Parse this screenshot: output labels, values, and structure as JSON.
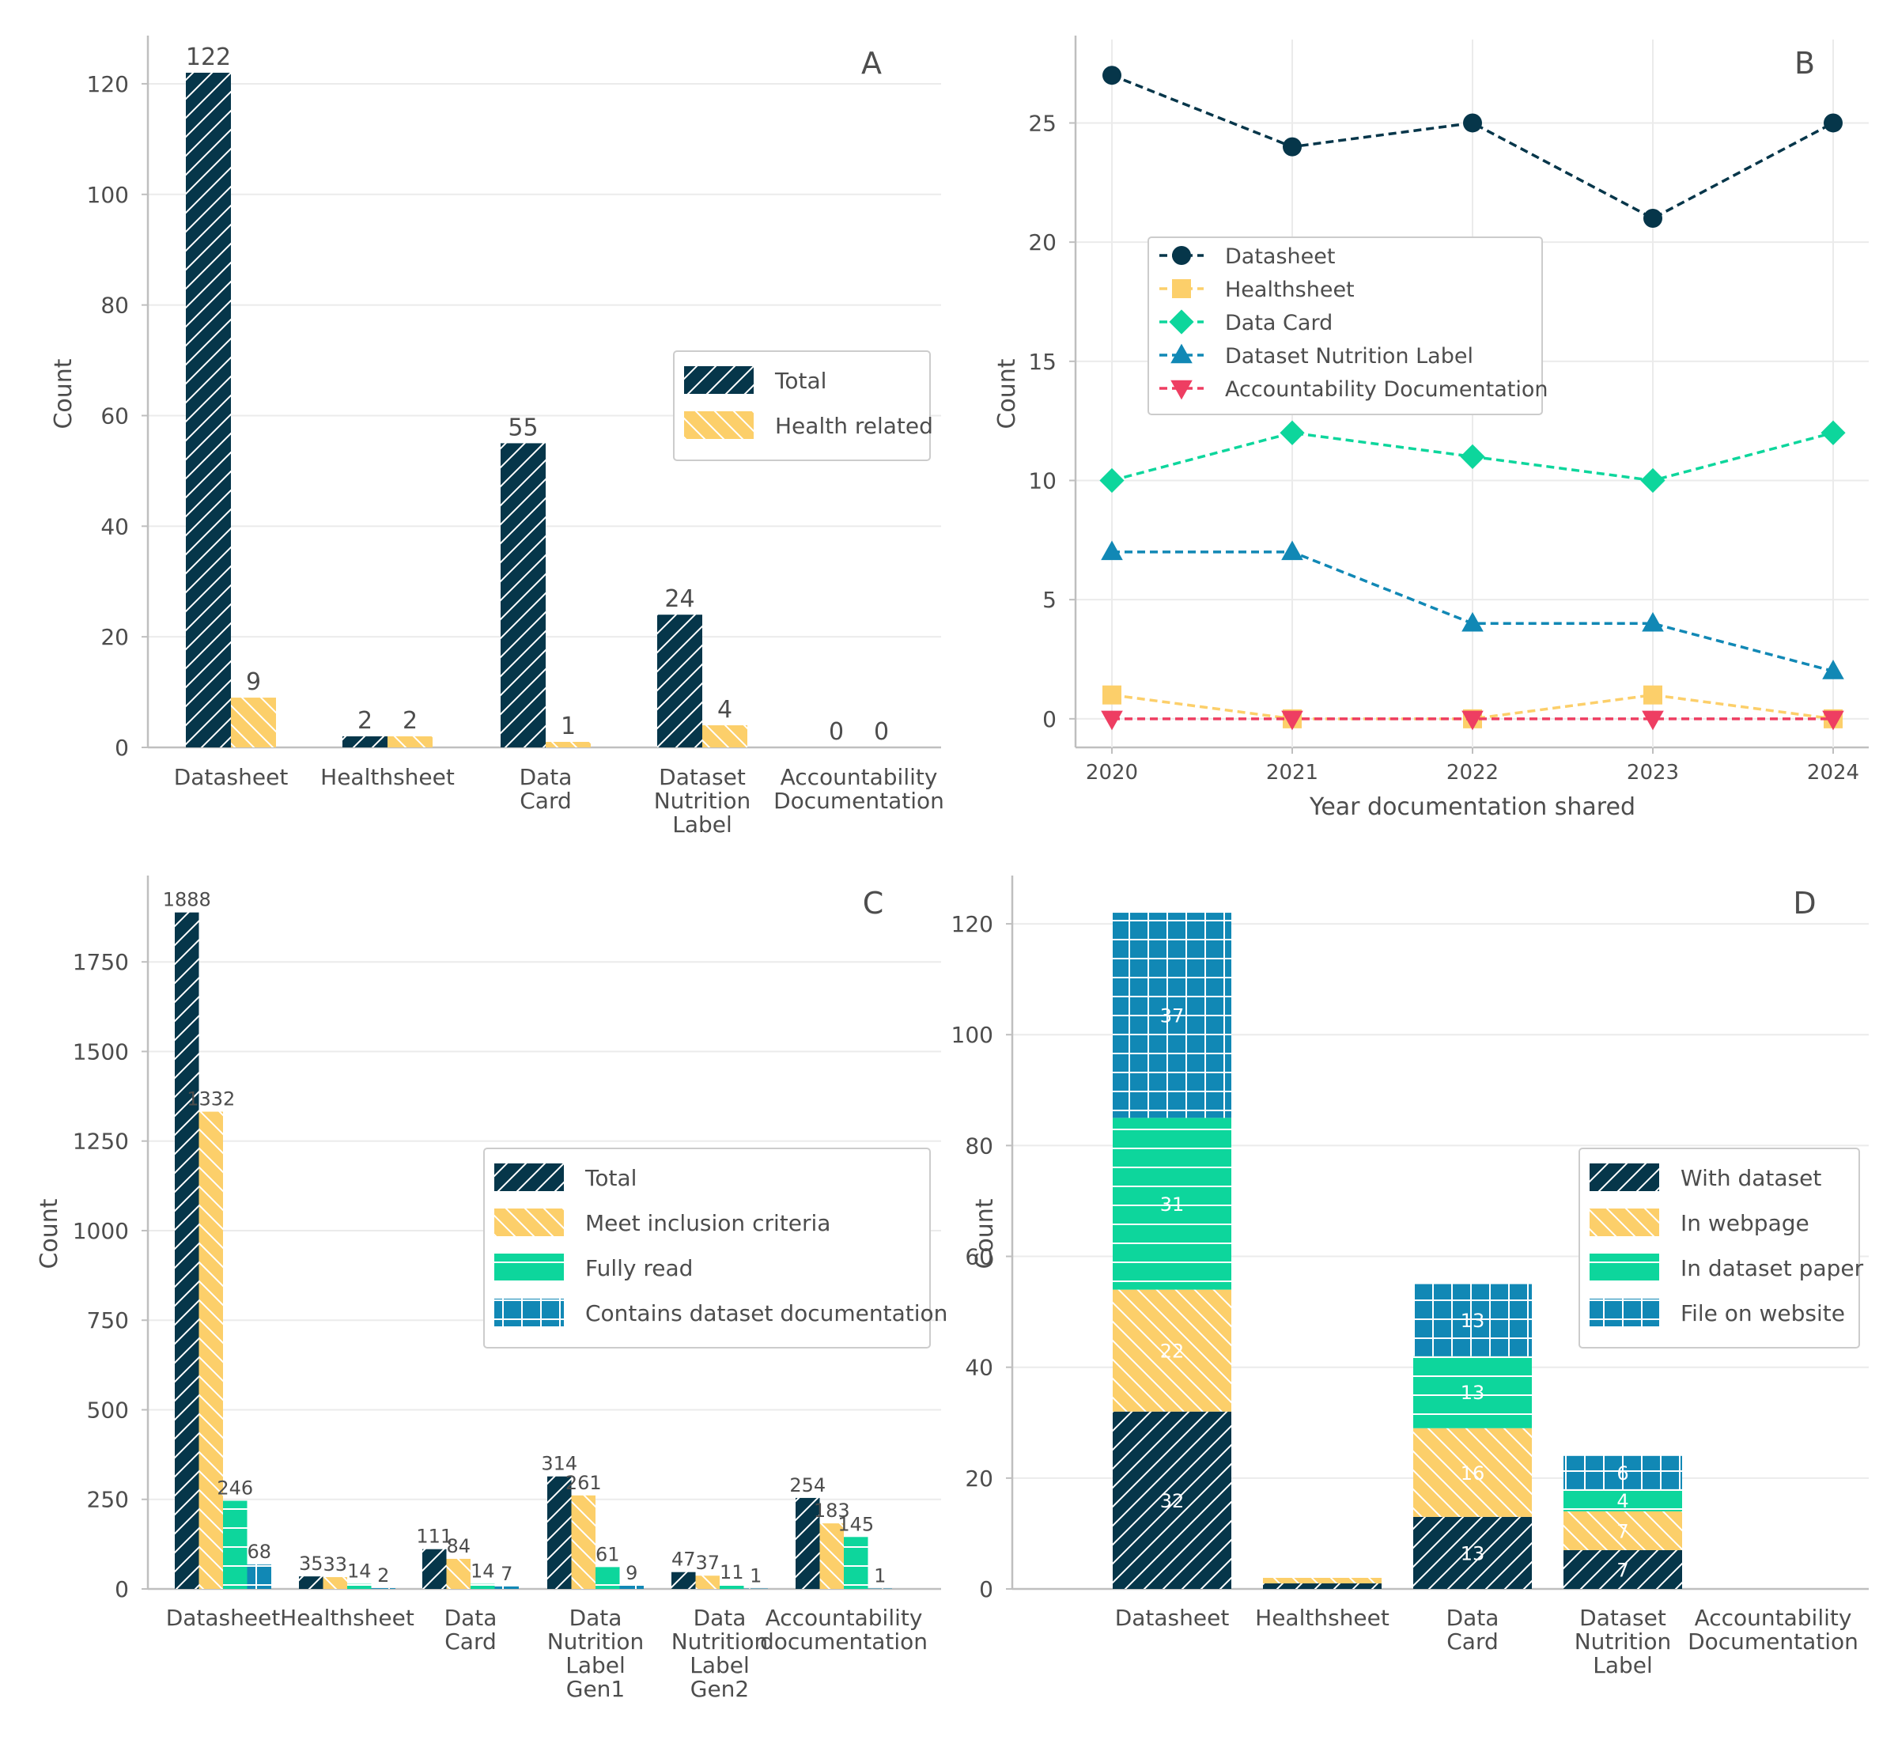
{
  "colors": {
    "dark": "#06364a",
    "yellow": "#fccf6a",
    "green": "#0dd69c",
    "blue": "#1188b5",
    "red": "#ee3e62",
    "axis": "#bfbfbf",
    "grid": "#ebebeb",
    "text": "#4d4d4d"
  },
  "chart_data": [
    {
      "panel": "A",
      "type": "bar",
      "panel_label": "A",
      "ylabel": "Count",
      "xlabel": "",
      "ylim": [
        0,
        128
      ],
      "yticks": [
        0,
        20,
        40,
        60,
        80,
        100,
        120
      ],
      "grid": true,
      "legend_position": "center-right",
      "categories": [
        [
          "Datasheet"
        ],
        [
          "Healthsheet"
        ],
        [
          "Data",
          "Card"
        ],
        [
          "Dataset",
          "Nutrition",
          "Label"
        ],
        [
          "Accountability",
          "Documentation"
        ]
      ],
      "series": [
        {
          "name": "Total",
          "color": "dark",
          "hatch": "diagonal",
          "values": [
            122,
            2,
            55,
            24,
            0
          ]
        },
        {
          "name": "Health related",
          "color": "yellow",
          "hatch": "back-diagonal",
          "values": [
            9,
            2,
            1,
            4,
            0
          ]
        }
      ]
    },
    {
      "panel": "B",
      "type": "line",
      "panel_label": "B",
      "ylabel": "Count",
      "xlabel": "Year documentation shared",
      "x": [
        "2020",
        "2021",
        "2022",
        "2023",
        "2024"
      ],
      "ylim": [
        -1.2,
        28.5
      ],
      "yticks": [
        0,
        5,
        10,
        15,
        20,
        25
      ],
      "grid": true,
      "legend_position": "upper-left",
      "series": [
        {
          "name": "Datasheet",
          "color": "dark",
          "marker": "circle",
          "values": [
            27,
            24,
            25,
            21,
            25
          ]
        },
        {
          "name": "Healthsheet",
          "color": "yellow",
          "marker": "square",
          "values": [
            1,
            0,
            0,
            1,
            0
          ]
        },
        {
          "name": "Data Card",
          "color": "green",
          "marker": "diamond",
          "values": [
            10,
            12,
            11,
            10,
            12
          ]
        },
        {
          "name": "Dataset Nutrition Label",
          "color": "blue",
          "marker": "triangle-up",
          "values": [
            7,
            7,
            4,
            4,
            2
          ]
        },
        {
          "name": "Accountability Documentation",
          "color": "red",
          "marker": "triangle-down",
          "values": [
            0,
            0,
            0,
            0,
            0
          ]
        }
      ]
    },
    {
      "panel": "C",
      "type": "bar",
      "panel_label": "C",
      "ylabel": "Count",
      "xlabel": "",
      "ylim": [
        0,
        1980
      ],
      "yticks": [
        0,
        250,
        500,
        750,
        1000,
        1250,
        1500,
        1750
      ],
      "grid": true,
      "legend_position": "center-right",
      "categories": [
        [
          "Datasheet"
        ],
        [
          "Healthsheet"
        ],
        [
          "Data",
          "Card"
        ],
        [
          "Data",
          "Nutrition",
          "Label",
          "Gen1"
        ],
        [
          "Data",
          "Nutrition",
          "Label",
          "Gen2"
        ],
        [
          "Accountability",
          "documentation"
        ]
      ],
      "series": [
        {
          "name": "Total",
          "color": "dark",
          "hatch": "diagonal",
          "values": [
            1888,
            35,
            111,
            314,
            47,
            254
          ]
        },
        {
          "name": "Meet inclusion criteria",
          "color": "yellow",
          "hatch": "back-diagonal",
          "values": [
            1332,
            33,
            84,
            261,
            37,
            183
          ]
        },
        {
          "name": "Fully read",
          "color": "green",
          "hatch": "horizontal",
          "values": [
            246,
            14,
            14,
            61,
            11,
            145
          ]
        },
        {
          "name": "Contains dataset documentation",
          "color": "blue",
          "hatch": "grid",
          "values": [
            68,
            2,
            7,
            9,
            1,
            1
          ]
        }
      ]
    },
    {
      "panel": "D",
      "type": "bar",
      "stacked": true,
      "panel_label": "D",
      "ylabel": "Count",
      "xlabel": "",
      "ylim": [
        0,
        128
      ],
      "yticks": [
        0,
        20,
        40,
        60,
        80,
        100,
        120
      ],
      "grid": true,
      "legend_position": "center-right",
      "categories": [
        [
          "Datasheet"
        ],
        [
          "Healthsheet"
        ],
        [
          "Data",
          "Card"
        ],
        [
          "Dataset",
          "Nutrition",
          "Label"
        ],
        [
          "Accountability",
          "Documentation"
        ]
      ],
      "series": [
        {
          "name": "With dataset",
          "color": "dark",
          "hatch": "diagonal",
          "values": [
            32,
            1,
            13,
            7,
            0
          ],
          "labels": [
            "32",
            "",
            "13",
            "7",
            ""
          ]
        },
        {
          "name": "In webpage",
          "color": "yellow",
          "hatch": "back-diagonal",
          "values": [
            22,
            1,
            16,
            7,
            0
          ],
          "labels": [
            "22",
            "",
            "16",
            "7",
            ""
          ]
        },
        {
          "name": "In dataset paper",
          "color": "green",
          "hatch": "horizontal",
          "values": [
            31,
            0,
            13,
            4,
            0
          ],
          "labels": [
            "31",
            "",
            "13",
            "4",
            ""
          ]
        },
        {
          "name": "File on website",
          "color": "blue",
          "hatch": "grid",
          "values": [
            37,
            0,
            13,
            6,
            0
          ],
          "labels": [
            "37",
            "",
            "13",
            "6",
            ""
          ]
        }
      ]
    }
  ]
}
